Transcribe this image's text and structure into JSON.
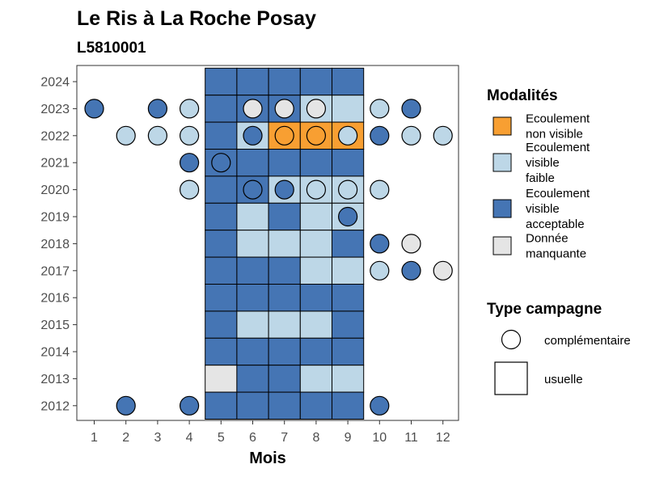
{
  "chart_data": {
    "type": "heatmap",
    "title": "Le Ris à La Roche Posay",
    "subtitle": "L5810001",
    "xlabel": "Mois",
    "ylabel": "",
    "x_ticks": [
      "1",
      "2",
      "3",
      "4",
      "5",
      "6",
      "7",
      "8",
      "9",
      "10",
      "11",
      "12"
    ],
    "y_ticks": [
      "2012",
      "2013",
      "2014",
      "2015",
      "2016",
      "2017",
      "2018",
      "2019",
      "2020",
      "2021",
      "2022",
      "2023",
      "2024"
    ],
    "colors": {
      "non_visible": "#F89F32",
      "faible": "#BDD7E7",
      "acceptable": "#4575B4",
      "manquante": "#E5E5E5"
    },
    "legend_modalites": {
      "title": "Modalités",
      "items": [
        {
          "key": "non_visible",
          "lines": [
            "Ecoulement",
            "non visible"
          ]
        },
        {
          "key": "faible",
          "lines": [
            "Ecoulement",
            "visible",
            "faible"
          ]
        },
        {
          "key": "acceptable",
          "lines": [
            "Ecoulement",
            "visible",
            "acceptable"
          ]
        },
        {
          "key": "manquante",
          "lines": [
            "Donnée",
            "manquante"
          ]
        }
      ]
    },
    "legend_campagne": {
      "title": "Type campagne",
      "items": [
        {
          "shape": "circle",
          "label": "complémentaire"
        },
        {
          "shape": "square",
          "label": "usuelle"
        }
      ]
    },
    "usuelle": [
      {
        "year": 2024,
        "values": {
          "5": "acceptable",
          "6": "acceptable",
          "7": "acceptable",
          "8": "acceptable",
          "9": "acceptable"
        }
      },
      {
        "year": 2023,
        "values": {
          "5": "acceptable",
          "6": "acceptable",
          "7": "acceptable",
          "8": "faible",
          "9": "faible"
        }
      },
      {
        "year": 2022,
        "values": {
          "5": "acceptable",
          "6": "faible",
          "7": "non_visible",
          "8": "non_visible",
          "9": "non_visible"
        }
      },
      {
        "year": 2021,
        "values": {
          "5": "acceptable",
          "6": "acceptable",
          "7": "acceptable",
          "8": "acceptable",
          "9": "acceptable"
        }
      },
      {
        "year": 2020,
        "values": {
          "5": "acceptable",
          "6": "acceptable",
          "7": "faible",
          "8": "faible",
          "9": "faible"
        }
      },
      {
        "year": 2019,
        "values": {
          "5": "acceptable",
          "6": "faible",
          "7": "acceptable",
          "8": "faible",
          "9": "faible"
        }
      },
      {
        "year": 2018,
        "values": {
          "5": "acceptable",
          "6": "faible",
          "7": "faible",
          "8": "faible",
          "9": "acceptable"
        }
      },
      {
        "year": 2017,
        "values": {
          "5": "acceptable",
          "6": "acceptable",
          "7": "acceptable",
          "8": "faible",
          "9": "faible"
        }
      },
      {
        "year": 2016,
        "values": {
          "5": "acceptable",
          "6": "acceptable",
          "7": "acceptable",
          "8": "acceptable",
          "9": "acceptable"
        }
      },
      {
        "year": 2015,
        "values": {
          "5": "acceptable",
          "6": "faible",
          "7": "faible",
          "8": "faible",
          "9": "acceptable"
        }
      },
      {
        "year": 2014,
        "values": {
          "5": "acceptable",
          "6": "acceptable",
          "7": "acceptable",
          "8": "acceptable",
          "9": "acceptable"
        }
      },
      {
        "year": 2013,
        "values": {
          "5": "manquante",
          "6": "acceptable",
          "7": "acceptable",
          "8": "faible",
          "9": "faible"
        }
      },
      {
        "year": 2012,
        "values": {
          "5": "acceptable",
          "6": "acceptable",
          "7": "acceptable",
          "8": "acceptable",
          "9": "acceptable"
        }
      }
    ],
    "complementaire": [
      {
        "year": 2023,
        "month": 1,
        "value": "acceptable"
      },
      {
        "year": 2023,
        "month": 3,
        "value": "acceptable"
      },
      {
        "year": 2023,
        "month": 4,
        "value": "faible"
      },
      {
        "year": 2023,
        "month": 6,
        "value": "manquante"
      },
      {
        "year": 2023,
        "month": 7,
        "value": "manquante"
      },
      {
        "year": 2023,
        "month": 8,
        "value": "manquante"
      },
      {
        "year": 2023,
        "month": 10,
        "value": "faible"
      },
      {
        "year": 2023,
        "month": 11,
        "value": "acceptable"
      },
      {
        "year": 2022,
        "month": 2,
        "value": "faible"
      },
      {
        "year": 2022,
        "month": 3,
        "value": "faible"
      },
      {
        "year": 2022,
        "month": 4,
        "value": "faible"
      },
      {
        "year": 2022,
        "month": 6,
        "value": "acceptable"
      },
      {
        "year": 2022,
        "month": 7,
        "value": "non_visible"
      },
      {
        "year": 2022,
        "month": 8,
        "value": "non_visible"
      },
      {
        "year": 2022,
        "month": 9,
        "value": "faible"
      },
      {
        "year": 2022,
        "month": 10,
        "value": "acceptable"
      },
      {
        "year": 2022,
        "month": 11,
        "value": "faible"
      },
      {
        "year": 2022,
        "month": 12,
        "value": "faible"
      },
      {
        "year": 2021,
        "month": 4,
        "value": "acceptable"
      },
      {
        "year": 2021,
        "month": 5,
        "value": "acceptable"
      },
      {
        "year": 2020,
        "month": 4,
        "value": "faible"
      },
      {
        "year": 2020,
        "month": 6,
        "value": "acceptable"
      },
      {
        "year": 2020,
        "month": 7,
        "value": "acceptable"
      },
      {
        "year": 2020,
        "month": 8,
        "value": "faible"
      },
      {
        "year": 2020,
        "month": 9,
        "value": "faible"
      },
      {
        "year": 2020,
        "month": 10,
        "value": "faible"
      },
      {
        "year": 2019,
        "month": 9,
        "value": "acceptable"
      },
      {
        "year": 2018,
        "month": 10,
        "value": "acceptable"
      },
      {
        "year": 2018,
        "month": 11,
        "value": "manquante"
      },
      {
        "year": 2017,
        "month": 10,
        "value": "faible"
      },
      {
        "year": 2017,
        "month": 11,
        "value": "acceptable"
      },
      {
        "year": 2017,
        "month": 12,
        "value": "manquante"
      },
      {
        "year": 2012,
        "month": 2,
        "value": "acceptable"
      },
      {
        "year": 2012,
        "month": 4,
        "value": "acceptable"
      },
      {
        "year": 2012,
        "month": 10,
        "value": "acceptable"
      }
    ]
  }
}
